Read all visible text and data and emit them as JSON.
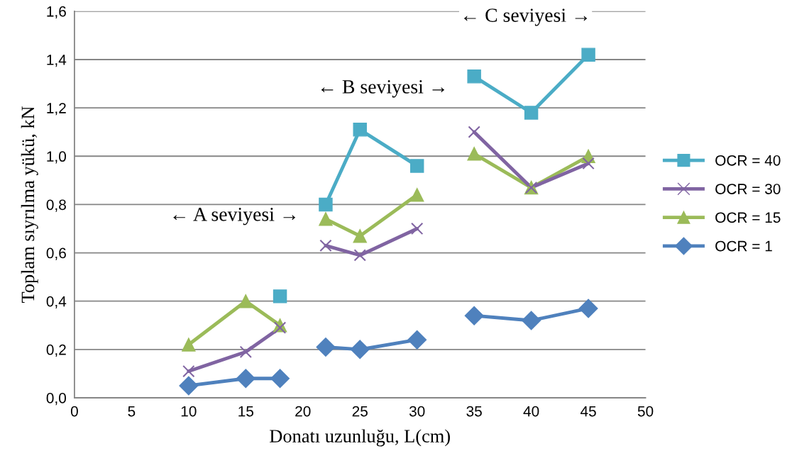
{
  "chart_data": {
    "type": "line",
    "xlabel": "Donatı uzunluğu, L(cm)",
    "ylabel": "Toplam sıyrılma yükü, kN",
    "xlim": [
      0,
      50
    ],
    "xticks": [
      0,
      5,
      10,
      15,
      20,
      25,
      30,
      35,
      40,
      45,
      50
    ],
    "ylim": [
      0,
      1.6
    ],
    "yticks": [
      {
        "value": 0,
        "label": "0,0"
      },
      {
        "value": 0.2,
        "label": "0,2"
      },
      {
        "value": 0.4,
        "label": "0,4"
      },
      {
        "value": 0.6,
        "label": "0,6"
      },
      {
        "value": 0.8,
        "label": "0,8"
      },
      {
        "value": 1.0,
        "label": "1,0"
      },
      {
        "value": 1.2,
        "label": "1,2"
      },
      {
        "value": 1.4,
        "label": "1,4"
      },
      {
        "value": 1.6,
        "label": "1,6"
      }
    ],
    "grid": "y",
    "legend": "right",
    "annotations": [
      "← A seviyesi →",
      "← B seviyesi →",
      "← C seviyesi →"
    ],
    "x": [
      10,
      15,
      18,
      null,
      22,
      25,
      30,
      null,
      35,
      40,
      45
    ],
    "series": [
      {
        "name": "OCR = 40",
        "color": "#4bacc6",
        "marker": "square",
        "values": [
          null,
          null,
          0.42,
          null,
          0.8,
          1.11,
          0.96,
          null,
          1.33,
          1.18,
          1.42
        ]
      },
      {
        "name": "OCR = 30",
        "color": "#8064a2",
        "marker": "cross",
        "values": [
          0.11,
          0.19,
          0.29,
          null,
          0.63,
          0.59,
          0.7,
          null,
          1.1,
          0.87,
          0.97
        ]
      },
      {
        "name": "OCR = 15",
        "color": "#9bbb59",
        "marker": "triangle",
        "values": [
          0.22,
          0.4,
          0.3,
          null,
          0.74,
          0.67,
          0.84,
          null,
          1.01,
          0.87,
          1.0
        ]
      },
      {
        "name": "OCR = 1",
        "color": "#4f81bd",
        "marker": "diamond",
        "values": [
          0.05,
          0.08,
          0.08,
          null,
          0.21,
          0.2,
          0.24,
          null,
          0.34,
          0.32,
          0.37
        ]
      }
    ]
  }
}
